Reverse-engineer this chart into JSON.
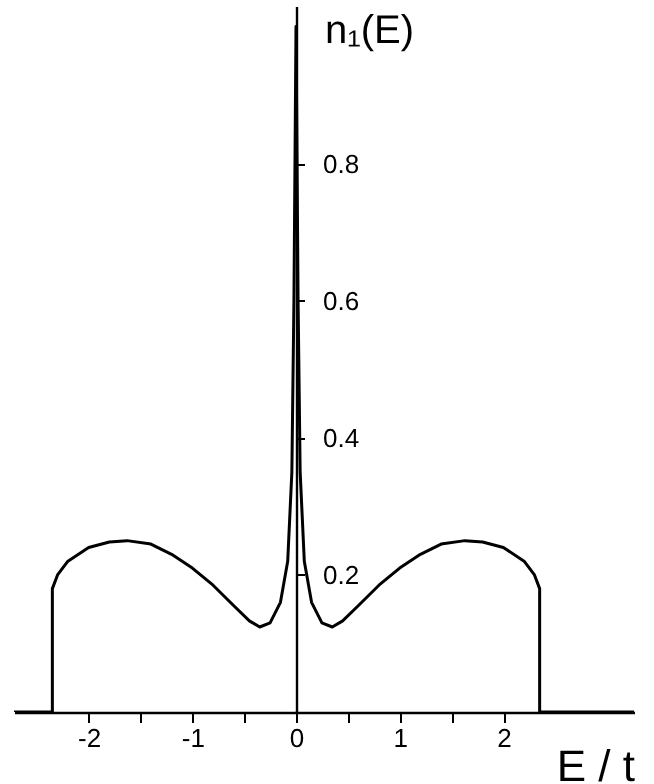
{
  "chart_data": {
    "type": "line",
    "xlabel": "E / t",
    "ylabel": "n₁(E)",
    "x": [
      -2.72,
      -2.35,
      -2.35,
      -2.3,
      -2.2,
      -2.0,
      -1.8,
      -1.63,
      -1.4,
      -1.2,
      -1.0,
      -0.8,
      -0.6,
      -0.45,
      -0.35,
      -0.25,
      -0.15,
      -0.08,
      -0.04,
      -0.02,
      0,
      0.02,
      0.04,
      0.08,
      0.15,
      0.25,
      0.35,
      0.45,
      0.6,
      0.8,
      1.0,
      1.2,
      1.4,
      1.63,
      1.8,
      2.0,
      2.2,
      2.3,
      2.35,
      2.35,
      3.26
    ],
    "series": [
      {
        "color": "#000000",
        "values": [
          0,
          0,
          0.18,
          0.2,
          0.22,
          0.24,
          0.248,
          0.25,
          0.245,
          0.23,
          0.21,
          0.185,
          0.155,
          0.133,
          0.124,
          0.13,
          0.16,
          0.22,
          0.35,
          0.6,
          1.0,
          0.6,
          0.35,
          0.22,
          0.16,
          0.13,
          0.124,
          0.133,
          0.155,
          0.185,
          0.21,
          0.23,
          0.245,
          0.25,
          0.248,
          0.24,
          0.22,
          0.2,
          0.18,
          0,
          0
        ]
      }
    ],
    "xlim": [
      -2.72,
      3.26
    ],
    "ylim": [
      0,
      1.03
    ],
    "xticks": [
      -2,
      {
        "value": -1.5,
        "label": null
      },
      -1,
      {
        "value": -0.5,
        "label": null
      },
      0,
      {
        "value": 0.5,
        "label": null
      },
      1,
      {
        "value": 1.5,
        "label": null
      },
      2
    ],
    "yticks": [
      0.2,
      0.4,
      0.6,
      0.8
    ],
    "grid": false,
    "marker": "none",
    "line_style": "solid"
  }
}
